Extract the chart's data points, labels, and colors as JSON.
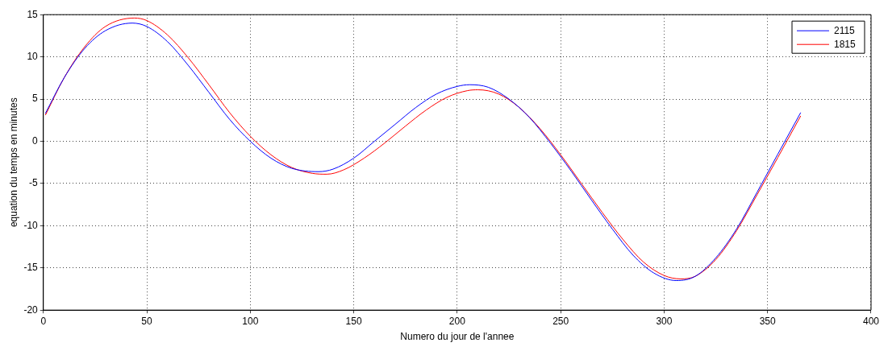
{
  "chart_data": {
    "type": "line",
    "xlabel": "Numero du jour de l'annee",
    "ylabel": "equation du temps en minutes",
    "xlim": [
      0,
      400
    ],
    "xticks": [
      0,
      50,
      100,
      150,
      200,
      250,
      300,
      350,
      400
    ],
    "ylim": [
      -20,
      15
    ],
    "yticks": [
      -20,
      -15,
      -10,
      -5,
      0,
      5,
      10,
      15
    ],
    "grid": true,
    "legend": "top right",
    "marker": "none",
    "line_style": "solid",
    "series": [
      {
        "name": "2115",
        "color": "#0000ff",
        "x": [
          1,
          10,
          20,
          30,
          43,
          50,
          60,
          70,
          80,
          90,
          100,
          110,
          120,
          133,
          140,
          150,
          160,
          170,
          180,
          190,
          200,
          206,
          215,
          225,
          235,
          245,
          255,
          265,
          275,
          285,
          295,
          306,
          315,
          325,
          335,
          345,
          355,
          366
        ],
        "values": [
          3.3,
          7.5,
          11.0,
          13.1,
          14.0,
          13.6,
          11.8,
          9.0,
          5.8,
          2.6,
          0.0,
          -2.0,
          -3.2,
          -3.6,
          -3.3,
          -2.0,
          0.0,
          2.0,
          4.0,
          5.6,
          6.5,
          6.7,
          6.4,
          5.0,
          2.8,
          -0.2,
          -3.5,
          -7.0,
          -10.4,
          -13.5,
          -15.6,
          -16.5,
          -16.0,
          -13.8,
          -10.4,
          -6.0,
          -1.5,
          3.4
        ]
      },
      {
        "name": "1815",
        "color": "#ff0000",
        "x": [
          1,
          10,
          20,
          30,
          44,
          50,
          60,
          70,
          80,
          90,
          100,
          110,
          120,
          130,
          137,
          145,
          155,
          165,
          175,
          185,
          195,
          205,
          210,
          220,
          230,
          240,
          250,
          260,
          270,
          280,
          290,
          300,
          308,
          315,
          325,
          335,
          345,
          355,
          366
        ],
        "values": [
          3.1,
          7.5,
          11.2,
          13.6,
          14.6,
          14.3,
          12.6,
          9.9,
          6.7,
          3.4,
          0.6,
          -1.6,
          -3.1,
          -3.8,
          -3.9,
          -3.4,
          -2.0,
          -0.2,
          1.8,
          3.7,
          5.2,
          6.0,
          6.1,
          5.6,
          4.0,
          1.5,
          -1.6,
          -5.0,
          -8.4,
          -11.6,
          -14.3,
          -15.9,
          -16.3,
          -16.0,
          -14.0,
          -10.6,
          -6.3,
          -1.9,
          3.0
        ]
      }
    ]
  }
}
